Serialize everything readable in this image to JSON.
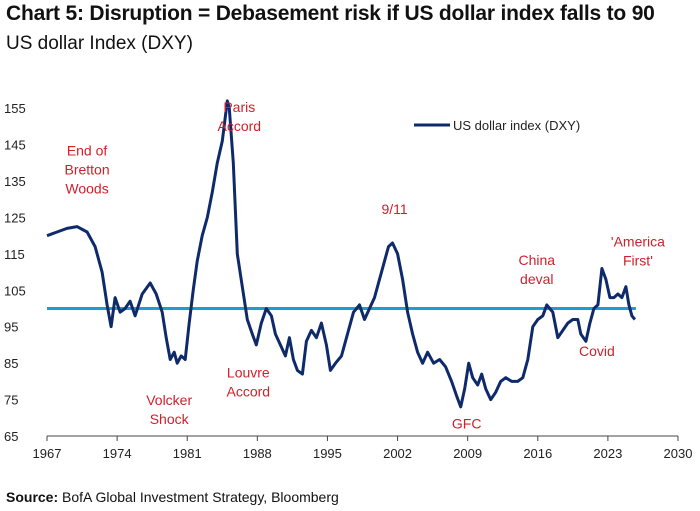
{
  "header": {
    "title": "Chart 5: Disruption = Debasement risk if US dollar index falls to 90",
    "subtitle": "US dollar Index (DXY)"
  },
  "footer": {
    "source_label": "Source:",
    "source_text": "BofA Global Investment Strategy, Bloomberg"
  },
  "colors": {
    "series": "#0f2a6b",
    "reference_line": "#1f9bd8",
    "annotation": "#d0202a"
  },
  "chart_data": {
    "type": "line",
    "title": "US dollar Index (DXY)",
    "xlabel": "",
    "ylabel": "",
    "xlim": [
      1967,
      2030
    ],
    "ylim": [
      65,
      160
    ],
    "x_ticks": [
      1967,
      1974,
      1981,
      1988,
      1995,
      2002,
      2009,
      2016,
      2023,
      2030
    ],
    "y_ticks": [
      65,
      75,
      85,
      95,
      105,
      115,
      125,
      135,
      145,
      155
    ],
    "grid": false,
    "legend": {
      "position": "top-right",
      "entries": [
        "US dollar index (DXY)"
      ]
    },
    "reference_line": {
      "y": 100,
      "label": ""
    },
    "series": [
      {
        "name": "US dollar index (DXY)",
        "x": [
          1967.0,
          1968.0,
          1969.0,
          1970.0,
          1971.0,
          1971.8,
          1972.5,
          1973.0,
          1973.4,
          1973.8,
          1974.3,
          1974.8,
          1975.3,
          1975.8,
          1976.5,
          1977.3,
          1977.9,
          1978.5,
          1978.9,
          1979.3,
          1979.7,
          1980.0,
          1980.4,
          1980.8,
          1981.2,
          1981.6,
          1982.0,
          1982.5,
          1983.0,
          1983.5,
          1984.0,
          1984.5,
          1985.0,
          1985.2,
          1985.6,
          1986.0,
          1986.5,
          1987.0,
          1987.5,
          1987.9,
          1988.4,
          1988.9,
          1989.4,
          1989.8,
          1990.3,
          1990.8,
          1991.2,
          1991.6,
          1992.0,
          1992.5,
          1992.9,
          1993.4,
          1993.9,
          1994.4,
          1994.9,
          1995.3,
          1995.8,
          1996.4,
          1997.0,
          1997.6,
          1998.2,
          1998.7,
          1999.2,
          1999.7,
          2000.2,
          2000.7,
          2001.1,
          2001.5,
          2002.0,
          2002.5,
          2003.0,
          2003.5,
          2004.0,
          2004.5,
          2005.0,
          2005.6,
          2006.2,
          2006.8,
          2007.4,
          2007.9,
          2008.3,
          2008.7,
          2009.1,
          2009.5,
          2010.0,
          2010.4,
          2010.8,
          2011.3,
          2011.8,
          2012.3,
          2012.8,
          2013.4,
          2014.0,
          2014.5,
          2015.0,
          2015.5,
          2016.0,
          2016.5,
          2016.9,
          2017.5,
          2018.0,
          2018.5,
          2019.0,
          2019.5,
          2020.0,
          2020.3,
          2020.8,
          2021.2,
          2021.6,
          2022.0,
          2022.4,
          2022.8,
          2023.2,
          2023.6,
          2024.0,
          2024.4,
          2024.8,
          2025.1,
          2025.4,
          2025.7
        ],
        "values": [
          120,
          121,
          122,
          122.5,
          121,
          117,
          110,
          101,
          95,
          103,
          99,
          100,
          102,
          98,
          104,
          107,
          104,
          99,
          92,
          86,
          88,
          85,
          87,
          86,
          96,
          105,
          113,
          120,
          125,
          132,
          140,
          146,
          157,
          155,
          140,
          115,
          106,
          97,
          93,
          90,
          96,
          100,
          98,
          93,
          90,
          87,
          92,
          86,
          83,
          82,
          91,
          94,
          92,
          96,
          90,
          83,
          85,
          87,
          93,
          99,
          101,
          97,
          100,
          103,
          108,
          113,
          117,
          118,
          115,
          108,
          99,
          93,
          88,
          85,
          88,
          85,
          86,
          84,
          80,
          76,
          73,
          78,
          85,
          81,
          79,
          82,
          78,
          75,
          77,
          80,
          81,
          80,
          80,
          81,
          86,
          95,
          97,
          98,
          101,
          99,
          92,
          94,
          96,
          97,
          97,
          93,
          91,
          96,
          100,
          101,
          111,
          108,
          103,
          103,
          104,
          103,
          106,
          101,
          98,
          97
        ]
      }
    ],
    "annotations": [
      {
        "lines": [
          "End of",
          "Bretton",
          "Woods"
        ],
        "x": 1971.0,
        "y": 142
      },
      {
        "lines": [
          "Volcker",
          "Shock"
        ],
        "x": 1979.2,
        "y": 73.5
      },
      {
        "lines": [
          "Paris",
          "Accord"
        ],
        "x": 1986.2,
        "y": 154
      },
      {
        "lines": [
          "Louvre",
          "Accord"
        ],
        "x": 1987.1,
        "y": 81
      },
      {
        "lines": [
          "9/11"
        ],
        "x": 2001.7,
        "y": 126
      },
      {
        "lines": [
          "GFC"
        ],
        "x": 2008.9,
        "y": 67
      },
      {
        "lines": [
          "China",
          "deval"
        ],
        "x": 2015.9,
        "y": 112
      },
      {
        "lines": [
          "Covid"
        ],
        "x": 2021.9,
        "y": 87
      },
      {
        "lines": [
          "'America",
          "First'"
        ],
        "x": 2026.0,
        "y": 117
      }
    ]
  }
}
